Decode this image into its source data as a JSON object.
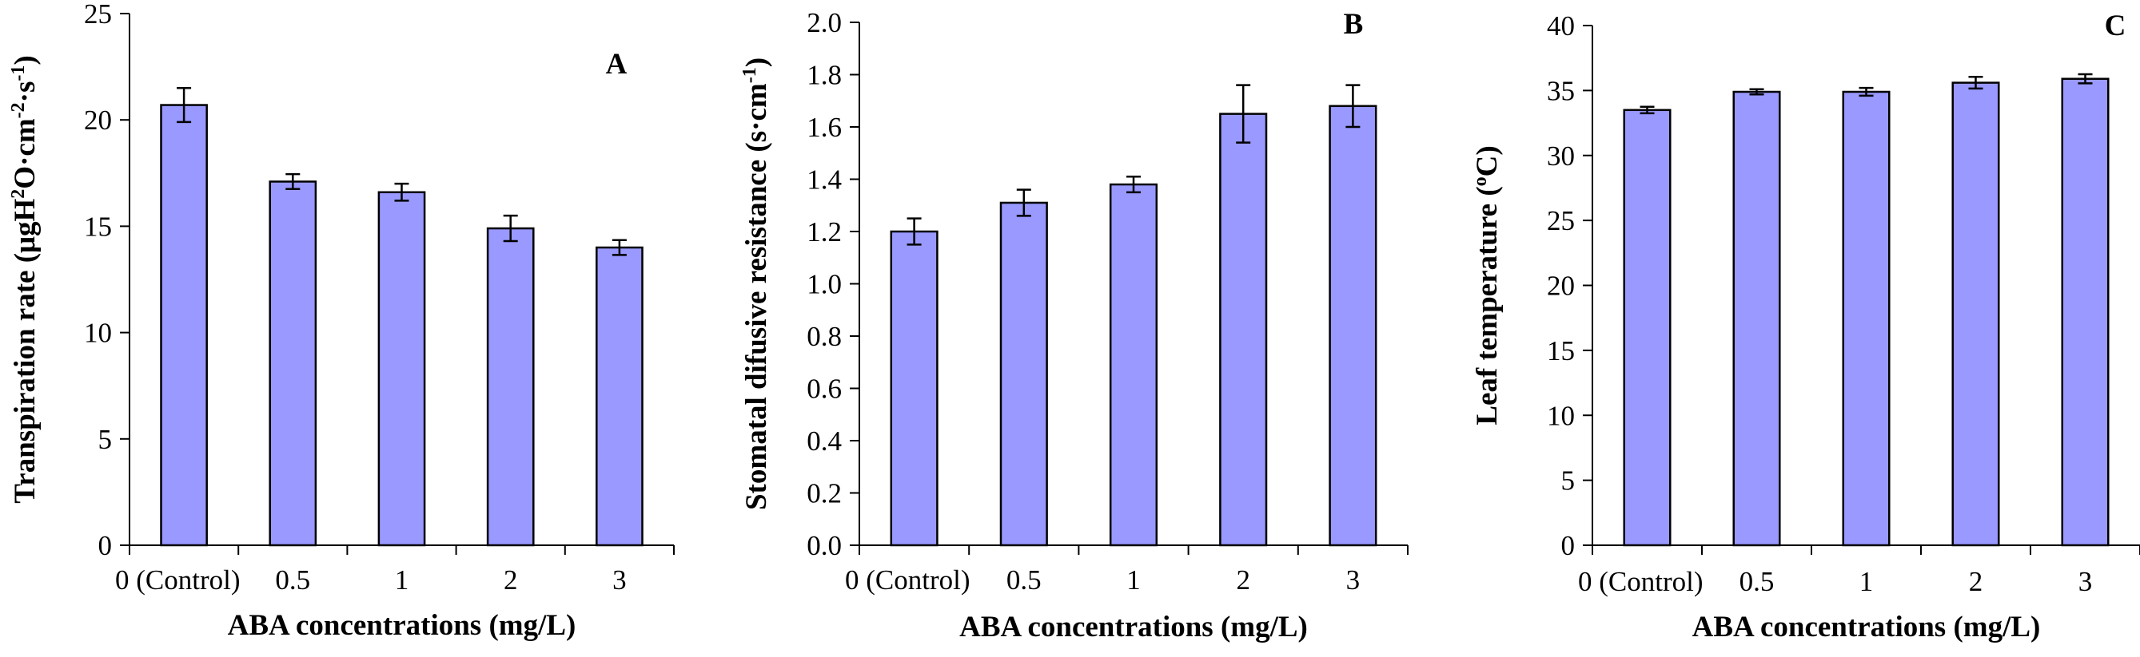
{
  "figure": {
    "bar_fill": "#9999ff",
    "bar_stroke": "#000000",
    "axis_color": "#000000"
  },
  "chart_data": [
    {
      "type": "bar",
      "panel_label": "A",
      "categories": [
        "0 (Control)",
        "0.5",
        "1",
        "2",
        "3"
      ],
      "values": [
        20.7,
        17.1,
        16.6,
        14.9,
        14.0
      ],
      "errors": [
        0.8,
        0.35,
        0.4,
        0.6,
        0.35
      ],
      "ylim": [
        0,
        25
      ],
      "yticks": [
        0,
        5,
        10,
        15,
        20,
        25
      ],
      "ytick_decimals": 0,
      "xlabel": "ABA concentrations (mg/L)",
      "ylabel": "Transpiration rate (μgH2O·cm-2·s-1)",
      "ylabel_parts": [
        {
          "text": "Transpiration rate (μgH",
          "sup": false
        },
        {
          "text": "2",
          "sup": true
        },
        {
          "text": "O·cm",
          "sup": false
        },
        {
          "text": "-2",
          "sup": true
        },
        {
          "text": "·s",
          "sup": false
        },
        {
          "text": "-1",
          "sup": true
        },
        {
          "text": ")",
          "sup": false
        }
      ]
    },
    {
      "type": "bar",
      "panel_label": "B",
      "categories": [
        "0 (Control)",
        "0.5",
        "1",
        "2",
        "3"
      ],
      "values": [
        1.2,
        1.31,
        1.38,
        1.65,
        1.68
      ],
      "errors": [
        0.05,
        0.05,
        0.03,
        0.11,
        0.08
      ],
      "ylim": [
        0,
        2.0
      ],
      "yticks": [
        0.0,
        0.2,
        0.4,
        0.6,
        0.8,
        1.0,
        1.2,
        1.4,
        1.6,
        1.8,
        2.0
      ],
      "ytick_decimals": 1,
      "xlabel": "ABA concentrations (mg/L)",
      "ylabel": "Stomatal difusive resistance (s·cm-1)",
      "ylabel_parts": [
        {
          "text": "Stomatal difusive resistance (s·cm",
          "sup": false
        },
        {
          "text": "-1",
          "sup": true
        },
        {
          "text": ")",
          "sup": false
        }
      ]
    },
    {
      "type": "bar",
      "panel_label": "C",
      "categories": [
        "0 (Control)",
        "0.5",
        "1",
        "2",
        "3"
      ],
      "values": [
        33.5,
        34.9,
        34.9,
        35.6,
        35.9
      ],
      "errors": [
        0.25,
        0.2,
        0.3,
        0.45,
        0.35
      ],
      "ylim": [
        0,
        40
      ],
      "yticks": [
        0,
        5,
        10,
        15,
        20,
        25,
        30,
        35,
        40
      ],
      "ytick_decimals": 0,
      "xlabel": "ABA concentrations (mg/L)",
      "ylabel": "Leaf temperature (oC)",
      "ylabel_parts": [
        {
          "text": "Leaf temperature (",
          "sup": false
        },
        {
          "text": "o",
          "sup": true
        },
        {
          "text": "C)",
          "sup": false
        }
      ]
    }
  ]
}
